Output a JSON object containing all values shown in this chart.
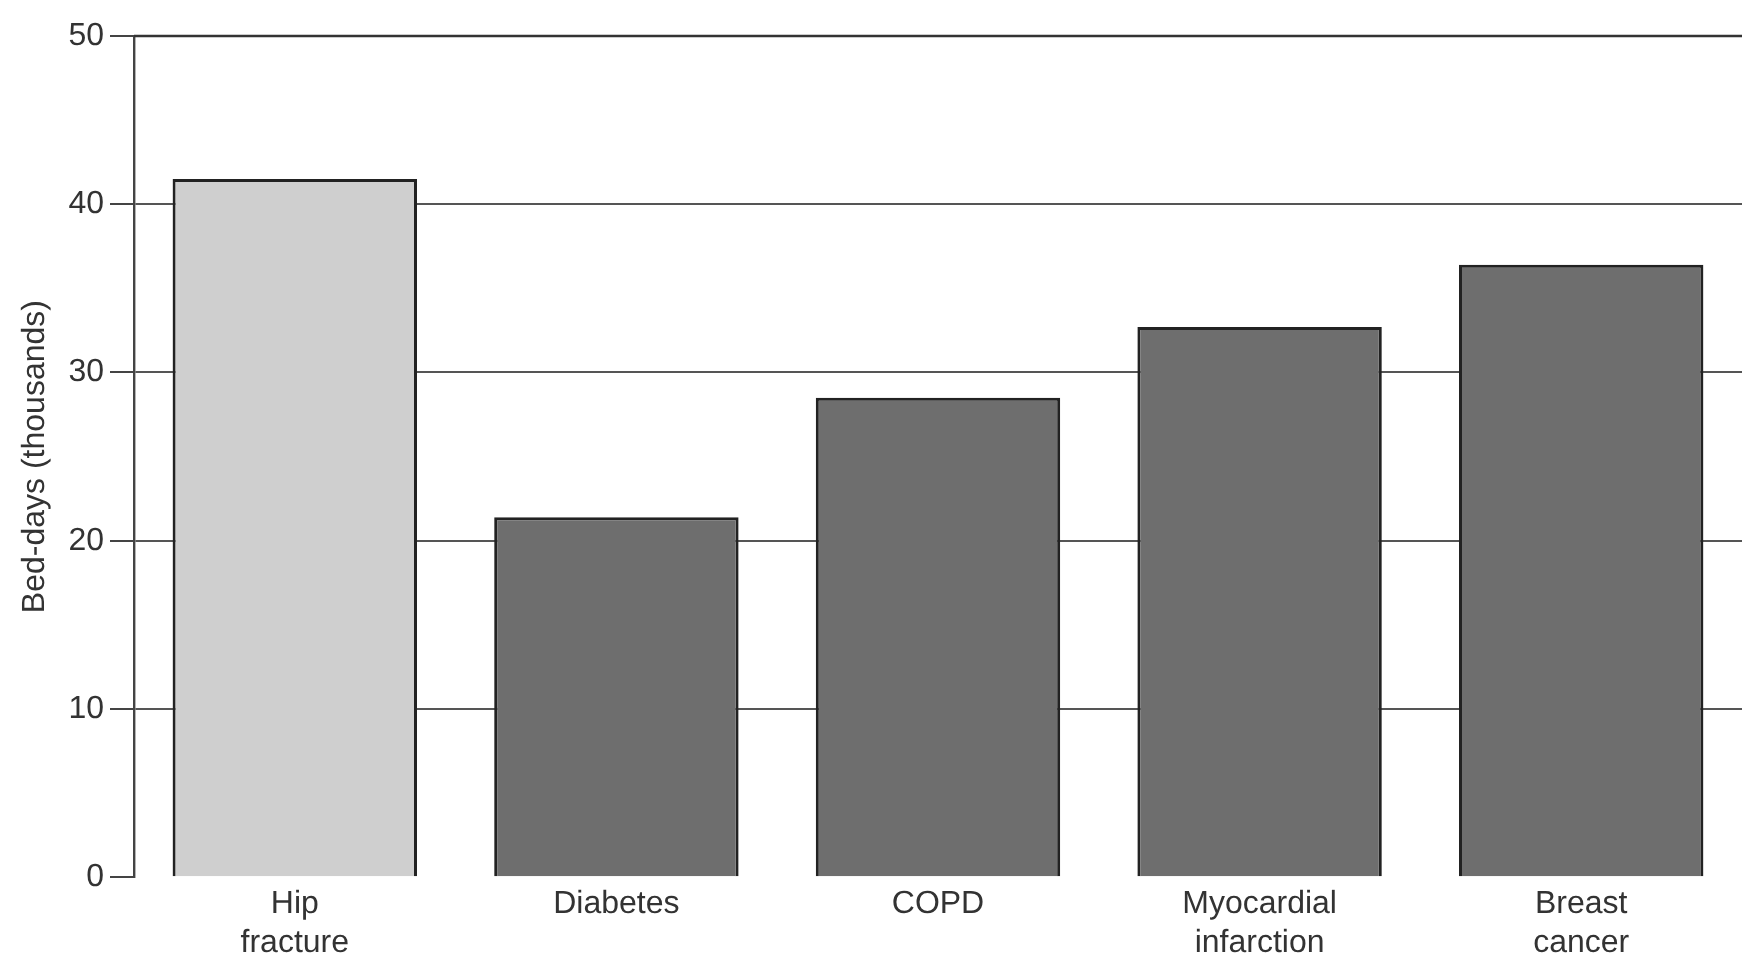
{
  "chart_data": {
    "type": "bar",
    "ylabel": "Bed-days (thousands)",
    "categories": [
      "Hip fracture",
      "Diabetes",
      "COPD",
      "Myocardial infarction",
      "Breast cancer"
    ],
    "values": [
      41.5,
      21.4,
      28.5,
      32.7,
      36.4
    ],
    "colors": [
      "#cfcfcf",
      "#6e6e6e",
      "#6e6e6e",
      "#6e6e6e",
      "#6e6e6e"
    ],
    "ylim": [
      0,
      50
    ],
    "yticks": [
      0,
      10,
      20,
      30,
      40,
      50
    ],
    "grid": "y"
  }
}
